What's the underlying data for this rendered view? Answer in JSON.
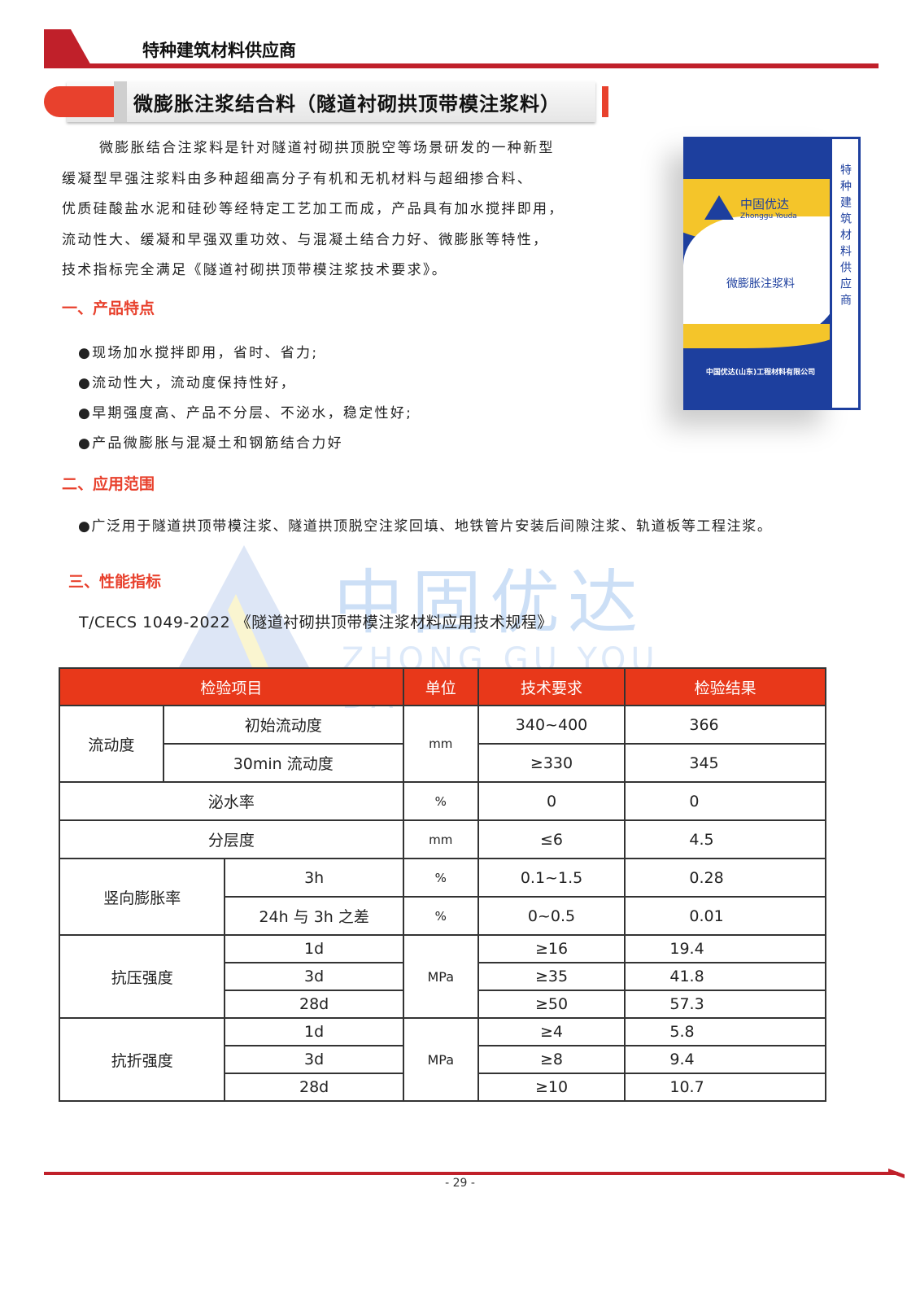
{
  "header": {
    "title": "特种建筑材料供应商"
  },
  "doc_title": "微膨胀注浆结合料（隧道衬砌拱顶带模注浆料）",
  "intro": [
    "微膨胀结合注浆料是针对隧道衬砌拱顶脱空等场景研发的一种新型",
    "缓凝型早强注浆料由多种超细高分子有机和无机材料与超细掺合料、",
    "优质硅酸盐水泥和硅砂等经特定工艺加工而成，产品具有加水搅拌即用，",
    "流动性大、缓凝和早强双重功效、与混凝土结合力好、微膨胀等特性，",
    "技术指标完全满足《隧道衬砌拱顶带模注浆技术要求》。"
  ],
  "product_image": {
    "brand_cn": "中固优达",
    "brand_en": "Zhonggu Youda",
    "product_name": "微膨胀注浆料",
    "side_text": "特种建筑材料供应商",
    "company": "中国优达(山东)工程材料有限公司",
    "colors": {
      "blue": "#1d3f9e",
      "yellow": "#f4c52a"
    }
  },
  "sections": {
    "features": {
      "title": "一、产品特点",
      "items": [
        "●现场加水搅拌即用，省时、省力;",
        "●流动性大，流动度保持性好，",
        "●早期强度高、产品不分层、不泌水，稳定性好;",
        "●产品微膨胀与混凝土和钢筋结合力好"
      ]
    },
    "scope": {
      "title": "二、应用范围",
      "items": [
        "●广泛用于隧道拱顶带模注浆、隧道拱顶脱空注浆回填、地铁管片安装后间隙注浆、轨道板等工程注浆。"
      ]
    },
    "performance": {
      "title": "三、性能指标",
      "standard": "T/CECS 1049-2022 《隧道衬砌拱顶带模注浆材料应用技术规程》"
    }
  },
  "watermark": {
    "cn": "中固优达",
    "en": "ZHONG GU YOU DA"
  },
  "table": {
    "headers": [
      "检验项目",
      "单位",
      "技术要求",
      "检验结果"
    ],
    "flow": {
      "label": "流动度",
      "unit": "mm",
      "rows": [
        [
          "初始流动度",
          "340~400",
          "366"
        ],
        [
          "30min 流动度",
          "≥330",
          "345"
        ]
      ]
    },
    "bleed": [
      "泌水率",
      "%",
      "0",
      "0"
    ],
    "layer": [
      "分层度",
      "mm",
      "≤6",
      "4.5"
    ],
    "expansion": {
      "label": "竖向膨胀率",
      "rows": [
        [
          "3h",
          "%",
          "0.1~1.5",
          "0.28"
        ],
        [
          "24h 与 3h 之差",
          "%",
          "0~0.5",
          "0.01"
        ]
      ]
    },
    "compressive": {
      "label": "抗压强度",
      "unit": "MPa",
      "rows": [
        [
          "1d",
          "≥16",
          "19.4"
        ],
        [
          "3d",
          "≥35",
          "41.8"
        ],
        [
          "28d",
          "≥50",
          "57.3"
        ]
      ]
    },
    "flexural": {
      "label": "抗折强度",
      "unit": "MPa",
      "rows": [
        [
          "1d",
          "≥4",
          "5.8"
        ],
        [
          "3d",
          "≥8",
          "9.4"
        ],
        [
          "28d",
          "≥10",
          "10.7"
        ]
      ]
    }
  },
  "footer": {
    "page": "- 29 -"
  },
  "colors": {
    "accent_red": "#e8412d",
    "header_red": "#c0202a",
    "table_header": "#e8381a"
  }
}
